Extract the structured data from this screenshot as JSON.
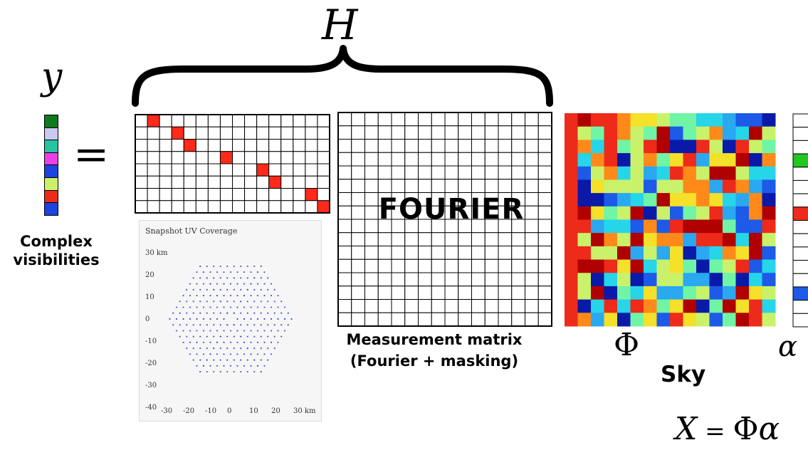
{
  "labels": {
    "H": "H",
    "y": "y",
    "equals": "=",
    "complex_visibilities": [
      "Complex",
      "visibilities"
    ],
    "fourier": "FOURIER",
    "measurement_matrix": [
      "Measurement matrix",
      "(Fourier + masking)"
    ],
    "phi": "Φ",
    "alpha": "α",
    "sky": "Sky",
    "equation": {
      "x": "X",
      "eq": " = ",
      "phi": "Φ",
      "alpha": "α"
    }
  },
  "colors": {
    "mask": "#ff2a1a",
    "grid": "#000000",
    "uv_points": "#4c5ad8"
  },
  "y_vector_colors": [
    "#0d7a1e",
    "#c8c8f0",
    "#27c4a2",
    "#ee3ee8",
    "#1d43e0",
    "#c9f26a",
    "#ee2a1a",
    "#1d43e0"
  ],
  "mask_matrix": {
    "rows": 8,
    "cols": 16,
    "selected": [
      [
        0,
        1
      ],
      [
        1,
        3
      ],
      [
        2,
        4
      ],
      [
        3,
        7
      ],
      [
        4,
        10
      ],
      [
        5,
        11
      ],
      [
        6,
        14
      ],
      [
        7,
        15
      ]
    ]
  },
  "fourier_matrix": {
    "rows": 16,
    "cols": 16
  },
  "phi_matrix": {
    "rows": 16,
    "cols": 16,
    "palette": [
      "#b00000",
      "#ee2a1a",
      "#ff8a1a",
      "#f5e02a",
      "#c9f26a",
      "#6ff5a5",
      "#27d5e8",
      "#2aa8f0",
      "#1d5ae8",
      "#0a1aa8"
    ]
  },
  "alpha_vector": {
    "cells": 16,
    "colors": {
      "3": "#22c722",
      "7": "#ee2a1a",
      "13": "#1d5ae8"
    }
  },
  "uv_plot": {
    "title": "Snapshot UV Coverage",
    "y_ticks": [
      "30 km",
      "20",
      "10",
      "0",
      "-10",
      "-20",
      "-30",
      "-40"
    ],
    "x_ticks": [
      "-30",
      "-20",
      "-10",
      "0",
      "10",
      "20",
      "30 km"
    ]
  }
}
